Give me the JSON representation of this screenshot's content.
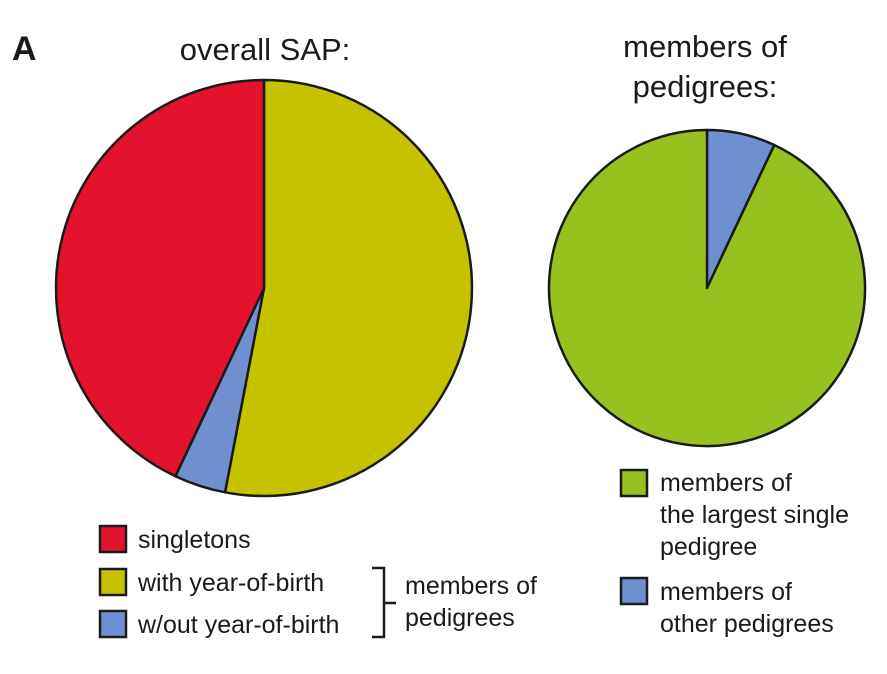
{
  "panel_label": "A",
  "chart_data": [
    {
      "type": "pie",
      "title": "overall SAP:",
      "slices": [
        {
          "label": "with year-of-birth",
          "value": 53,
          "color": "#c5c200"
        },
        {
          "label": "w/out year-of-birth",
          "value": 4,
          "color": "#6f8fcf"
        },
        {
          "label": "singletons",
          "value": 43,
          "color": "#e3132e"
        }
      ],
      "legend": [
        {
          "label": "singletons",
          "color": "#e3132e"
        },
        {
          "label": "with year-of-birth",
          "color": "#c5c200"
        },
        {
          "label": "w/out year-of-birth",
          "color": "#6f8fcf"
        }
      ],
      "bracket_label": [
        "members of",
        "pedigrees"
      ]
    },
    {
      "type": "pie",
      "title": [
        "members of",
        "pedigrees:"
      ],
      "slices": [
        {
          "label": "members of other pedigrees",
          "value": 7,
          "color": "#6f8fcf"
        },
        {
          "label": "members of the largest single pedigree",
          "value": 93,
          "color": "#97c11f"
        }
      ],
      "legend": [
        {
          "lines": [
            "members of",
            "the largest single",
            "pedigree"
          ],
          "color": "#97c11f"
        },
        {
          "lines": [
            "members of",
            "other pedigrees"
          ],
          "color": "#6f8fcf"
        }
      ]
    }
  ]
}
